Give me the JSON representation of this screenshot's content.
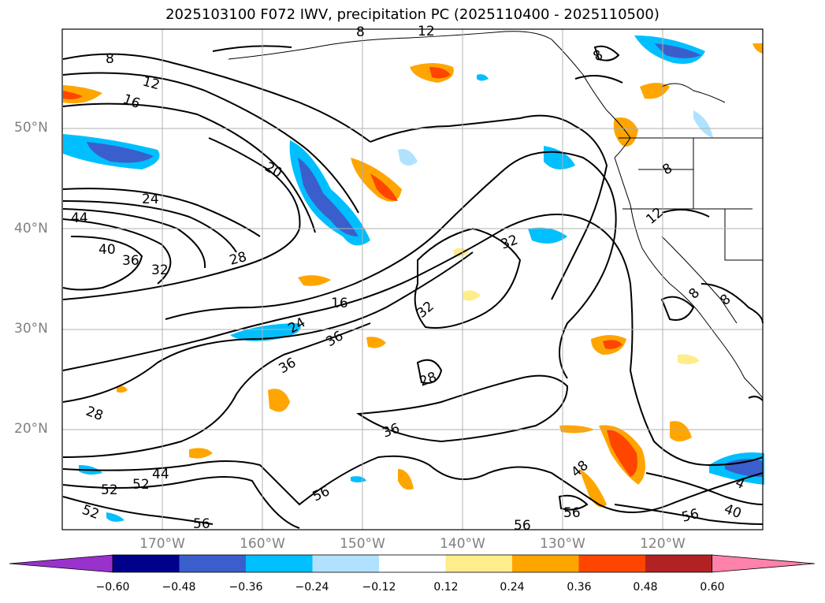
{
  "title": "2025103100 F072 IWV, precipitation PC (2025110400 - 2025110500)",
  "lat_labels": [
    "50°N",
    "40°N",
    "30°N",
    "20°N"
  ],
  "lon_labels": [
    "170°W",
    "160°W",
    "150°W",
    "140°W",
    "130°W",
    "120°W"
  ],
  "colorbar": {
    "ticks": [
      "−0.60",
      "−0.48",
      "−0.36",
      "−0.24",
      "−0.12",
      "0.12",
      "0.24",
      "0.36",
      "0.48",
      "0.60"
    ],
    "colors": [
      "#9932cc",
      "#00008b",
      "#3a5fcd",
      "#00bfff",
      "#b0e2ff",
      "#ffffff",
      "#ffec8b",
      "#ffa500",
      "#ff4500",
      "#b22222",
      "#ff82ab"
    ]
  },
  "contour_labels": [
    "8",
    "12",
    "16",
    "24",
    "44",
    "40",
    "36",
    "32",
    "28",
    "20",
    "16",
    "24",
    "36",
    "36",
    "32",
    "32",
    "28",
    "28",
    "36",
    "44",
    "52",
    "52",
    "52",
    "56",
    "56",
    "56",
    "56",
    "56",
    "40",
    "48",
    "4",
    "8",
    "8",
    "8",
    "8",
    "12",
    "12",
    "8"
  ]
}
